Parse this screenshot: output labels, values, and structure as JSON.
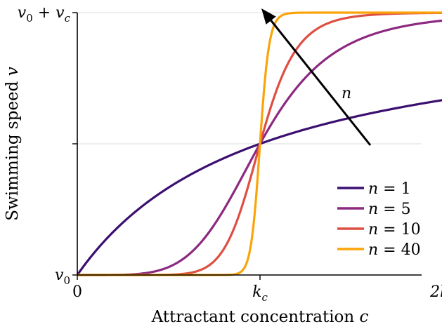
{
  "chart_data": {
    "type": "line",
    "xlabel_text": "Attractant concentration ",
    "xlabel_var": "c",
    "ylabel_text": "Swimming speed ",
    "ylabel_var": "v",
    "x_ticks": [
      {
        "value": 0,
        "label": "0",
        "sub": ""
      },
      {
        "value": 1,
        "label": "k",
        "sub": "c"
      },
      {
        "value": 2,
        "label": "2k",
        "sub": "c"
      }
    ],
    "y_ticks": [
      {
        "value": 0,
        "label": "v",
        "sub": "0",
        "rest": ""
      },
      {
        "value": 0.5,
        "label": "",
        "sub": "",
        "rest": ""
      },
      {
        "value": 1,
        "label": "v",
        "sub": "0",
        "rest": " + v",
        "sub2": "c"
      }
    ],
    "xlim": [
      0,
      2
    ],
    "ylim": [
      0,
      1
    ],
    "grid": "horizontal",
    "legend_position": "bottom-right",
    "series": [
      {
        "name": "n = 1",
        "hill_n": 1,
        "color": "#3b0f70"
      },
      {
        "name": "n = 5",
        "hill_n": 5,
        "color": "#8c2981"
      },
      {
        "name": "n = 10",
        "hill_n": 10,
        "color": "#de4f43"
      },
      {
        "name": "n = 40",
        "hill_n": 40,
        "color": "#fba40a"
      }
    ],
    "annotation": {
      "label": "n",
      "arrow_from": [
        1.62,
        0.5
      ],
      "arrow_to": [
        1.01,
        1.0
      ]
    }
  }
}
